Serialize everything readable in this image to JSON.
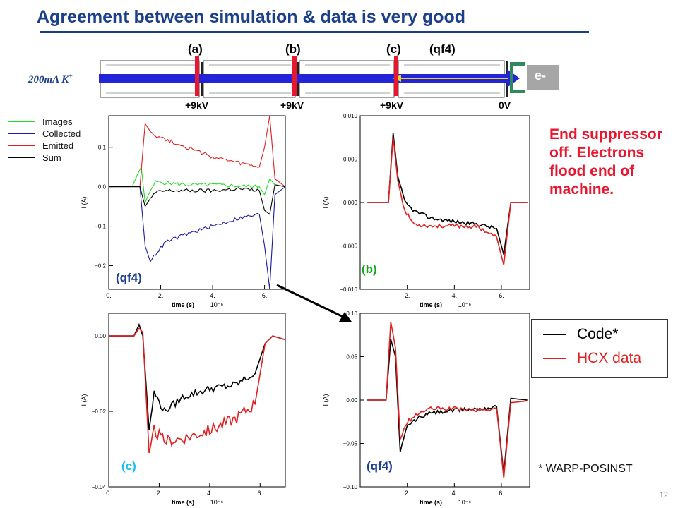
{
  "title": "Agreement between simulation & data is very good",
  "beam_label": "200mA K",
  "beam_label_sup": "+",
  "electron_label": "e-",
  "diagnostics": [
    {
      "label": "(a)",
      "color": "#e0519a"
    },
    {
      "label": "(b)",
      "color": "#10a818"
    },
    {
      "label": "(c)",
      "color": "#18c0e8"
    },
    {
      "label": "(qf4)",
      "color": "#1c3f8c"
    }
  ],
  "voltages": [
    "+9kV",
    "+9kV",
    "+9kV",
    "0V"
  ],
  "mini_legend": [
    {
      "label": "Images",
      "color": "#22dd22"
    },
    {
      "label": "Collected",
      "color": "#1a1aaa"
    },
    {
      "label": "Emitted",
      "color": "#e02020"
    },
    {
      "label": "Sum",
      "color": "#000000"
    }
  ],
  "note": "End suppressor off. Electrons flood end of machine.",
  "legend": [
    {
      "label": "Code*",
      "color": "#000000"
    },
    {
      "label": "HCX data",
      "color": "#e02020"
    }
  ],
  "footnote": "* WARP-POSINST",
  "page_number": "12",
  "chart_data": [
    {
      "id": "qf4-components",
      "type": "line",
      "panel_label": "(qf4)",
      "xlabel": "time (s)",
      "x_exponent": "10⁻⁶",
      "ylabel": "I (A)",
      "xlim": [
        0,
        6.8
      ],
      "ylim": [
        -0.26,
        0.18
      ],
      "xticks": [
        0,
        2,
        4,
        6
      ],
      "xtick_labels": [
        "0.",
        "2.",
        "4.",
        "6."
      ],
      "yticks": [
        -0.2,
        -0.1,
        0.0,
        0.1
      ],
      "ytick_labels": [
        "−0.2",
        "−0.1",
        "0.0",
        "0.1"
      ],
      "series": [
        {
          "name": "Images",
          "color": "#22dd22",
          "x": [
            0,
            0.9,
            1.1,
            1.25,
            1.4,
            1.6,
            1.8,
            2.2,
            3,
            4,
            5,
            5.8,
            6.0,
            6.2,
            6.4,
            6.8
          ],
          "y": [
            0,
            0.0,
            0.03,
            0.05,
            -0.04,
            -0.01,
            0.012,
            0.01,
            0.005,
            0.005,
            0.002,
            0.0,
            -0.02,
            0.02,
            0.005,
            0.0
          ]
        },
        {
          "name": "Collected",
          "color": "#1a1aaa",
          "x": [
            0,
            1.2,
            1.4,
            1.6,
            1.8,
            2.2,
            3,
            4,
            5,
            5.8,
            6.0,
            6.2,
            6.4,
            6.8
          ],
          "y": [
            0,
            0.0,
            -0.15,
            -0.19,
            -0.17,
            -0.14,
            -0.12,
            -0.1,
            -0.08,
            -0.07,
            -0.15,
            -0.26,
            -0.02,
            0.0
          ]
        },
        {
          "name": "Emitted",
          "color": "#e02020",
          "x": [
            0,
            1.2,
            1.4,
            1.6,
            1.8,
            2.2,
            3,
            4,
            5,
            5.8,
            6.0,
            6.2,
            6.4,
            6.8
          ],
          "y": [
            0,
            0.0,
            0.16,
            0.14,
            0.13,
            0.12,
            0.1,
            0.075,
            0.06,
            0.05,
            0.1,
            0.18,
            0.02,
            0.0
          ]
        },
        {
          "name": "Sum",
          "color": "#000000",
          "x": [
            0,
            1.2,
            1.4,
            1.6,
            1.8,
            2.2,
            3,
            4,
            5,
            5.8,
            6.0,
            6.2,
            6.4,
            6.8
          ],
          "y": [
            0,
            0.0,
            -0.05,
            -0.03,
            -0.015,
            -0.01,
            -0.01,
            -0.01,
            -0.005,
            -0.01,
            -0.06,
            -0.07,
            0.005,
            0.0
          ]
        }
      ]
    },
    {
      "id": "b-compare",
      "type": "line",
      "panel_label": "(b)",
      "xlabel": "time (s)",
      "x_exponent": "10⁻⁶",
      "ylabel": "I (A)",
      "xlim": [
        0,
        7.2
      ],
      "ylim": [
        -0.01,
        0.01
      ],
      "xticks": [
        2,
        4,
        6
      ],
      "xtick_labels": [
        "2.",
        "4.",
        "6."
      ],
      "yticks": [
        -0.01,
        -0.005,
        0.0,
        0.005,
        0.01
      ],
      "ytick_labels": [
        "−0.010",
        "−0.005",
        "0.000",
        "0.005",
        "0.010"
      ],
      "series": [
        {
          "name": "Code*",
          "color": "#000000",
          "x": [
            0.3,
            1.2,
            1.4,
            1.6,
            1.9,
            2.3,
            3,
            4,
            5,
            5.8,
            6.1,
            6.4,
            7.1
          ],
          "y": [
            0.0,
            0.0,
            0.008,
            0.003,
            0.0,
            -0.001,
            -0.0018,
            -0.0022,
            -0.0025,
            -0.003,
            -0.006,
            0.0,
            0.0
          ]
        },
        {
          "name": "HCX data",
          "color": "#e02020",
          "x": [
            0.3,
            1.2,
            1.4,
            1.6,
            1.9,
            2.3,
            3,
            4,
            5,
            5.8,
            6.1,
            6.4,
            7.1
          ],
          "y": [
            0.0,
            0.0,
            0.0075,
            0.0025,
            -0.001,
            -0.0025,
            -0.0027,
            -0.0027,
            -0.0028,
            -0.004,
            -0.0072,
            0.0,
            0.0
          ]
        }
      ]
    },
    {
      "id": "c-compare",
      "type": "line",
      "panel_label": "(c)",
      "xlabel": "time (s)",
      "x_exponent": "10⁻⁶",
      "ylabel": "I (A)",
      "xlim": [
        0,
        7.0
      ],
      "ylim": [
        -0.04,
        0.006
      ],
      "xticks": [
        0,
        2,
        4,
        6
      ],
      "xtick_labels": [
        "0.",
        "2.",
        "4.",
        "6."
      ],
      "yticks": [
        -0.04,
        -0.02,
        0.0
      ],
      "ytick_labels": [
        "−0.04",
        "−0.02",
        "0.00"
      ],
      "series": [
        {
          "name": "Code*",
          "color": "#000000",
          "x": [
            0,
            1.0,
            1.2,
            1.35,
            1.6,
            1.8,
            2.2,
            3,
            4,
            5,
            5.8,
            6.2,
            6.5,
            7.0
          ],
          "y": [
            0.0,
            0.0,
            0.003,
            0.0,
            -0.025,
            -0.015,
            -0.02,
            -0.016,
            -0.014,
            -0.013,
            -0.01,
            -0.002,
            0.0,
            -0.001
          ]
        },
        {
          "name": "HCX data",
          "color": "#e02020",
          "x": [
            0,
            1.0,
            1.2,
            1.35,
            1.6,
            1.8,
            2.2,
            3,
            4,
            5,
            5.8,
            6.2,
            6.5,
            7.0
          ],
          "y": [
            0.0,
            0.0,
            0.002,
            0.001,
            -0.031,
            -0.025,
            -0.028,
            -0.027,
            -0.025,
            -0.022,
            -0.018,
            -0.002,
            0.0,
            -0.001
          ]
        }
      ]
    },
    {
      "id": "qf4-compare",
      "type": "line",
      "panel_label": "(qf4)",
      "xlabel": "time (s)",
      "x_exponent": "10⁻⁶",
      "ylabel": "I (A)",
      "xlim": [
        0,
        7.2
      ],
      "ylim": [
        -0.1,
        0.1
      ],
      "xticks": [
        2,
        4,
        6
      ],
      "xtick_labels": [
        "2.",
        "4.",
        "6."
      ],
      "yticks": [
        -0.1,
        -0.05,
        0.0,
        0.05,
        0.1
      ],
      "ytick_labels": [
        "−0.10",
        "−0.05",
        "0.00",
        "0.05",
        "0.10"
      ],
      "series": [
        {
          "name": "Code*",
          "color": "#000000",
          "x": [
            0.3,
            1.1,
            1.3,
            1.5,
            1.7,
            2.0,
            2.5,
            3,
            4,
            5,
            5.8,
            6.1,
            6.4,
            7.1
          ],
          "y": [
            0.0,
            0.0,
            0.07,
            0.05,
            -0.06,
            -0.03,
            -0.02,
            -0.015,
            -0.012,
            -0.01,
            -0.008,
            -0.085,
            0.002,
            0.0
          ]
        },
        {
          "name": "HCX data",
          "color": "#e02020",
          "x": [
            0.3,
            1.1,
            1.3,
            1.5,
            1.7,
            2.0,
            2.5,
            3,
            4,
            5,
            5.8,
            6.1,
            6.4,
            7.1
          ],
          "y": [
            0.0,
            0.0,
            0.09,
            0.06,
            -0.045,
            -0.025,
            -0.015,
            -0.01,
            -0.01,
            -0.012,
            -0.01,
            -0.09,
            -0.003,
            -0.001
          ]
        }
      ]
    }
  ]
}
